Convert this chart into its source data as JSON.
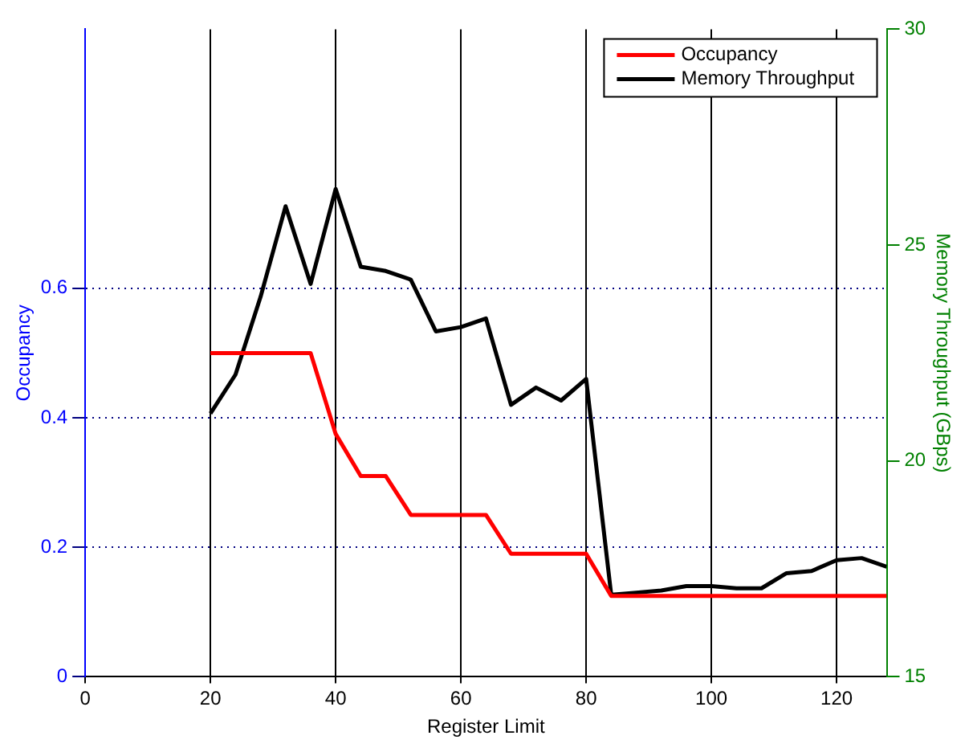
{
  "chart_data": {
    "type": "line",
    "xlabel": "Register Limit",
    "ylabel": "Occupancy",
    "y2label": "Memory Throughput (GBps)",
    "x": [
      20,
      24,
      28,
      32,
      36,
      40,
      44,
      48,
      52,
      56,
      60,
      64,
      68,
      72,
      76,
      80,
      84,
      88,
      92,
      96,
      100,
      104,
      108,
      112,
      116,
      120,
      124,
      128
    ],
    "series": [
      {
        "name": "Occupancy",
        "color": "#ff0000",
        "values": [
          0.5,
          0.5,
          0.5,
          0.5,
          0.5,
          0.375,
          0.31,
          0.31,
          0.25,
          0.25,
          0.25,
          0.25,
          0.19,
          0.19,
          0.19,
          0.19,
          0.125,
          0.125,
          0.125,
          0.125,
          0.125,
          0.125,
          0.125,
          0.125,
          0.125,
          0.125,
          0.125,
          0.125
        ]
      },
      {
        "name": "Memory Throughput",
        "color": "#000000",
        "axis": "y2",
        "values": [
          21.1,
          22.0,
          23.8,
          25.9,
          24.1,
          26.3,
          24.5,
          24.4,
          24.2,
          23.0,
          23.1,
          23.3,
          21.3,
          21.7,
          21.4,
          21.9,
          16.9,
          16.95,
          17.0,
          17.1,
          17.1,
          17.05,
          17.05,
          17.4,
          17.45,
          17.7,
          17.75,
          17.55
        ]
      }
    ],
    "xlim": [
      0,
      128
    ],
    "xticks": [
      0,
      20,
      40,
      60,
      80,
      100,
      120
    ],
    "ylim": [
      0,
      1
    ],
    "yticks": [
      0,
      0.2,
      0.4,
      0.6
    ],
    "y2lim": [
      15,
      30
    ],
    "y2ticks": [
      15,
      20,
      25,
      30
    ],
    "grid": true,
    "legend": "top right",
    "marker": "none",
    "line_style": "solid"
  }
}
